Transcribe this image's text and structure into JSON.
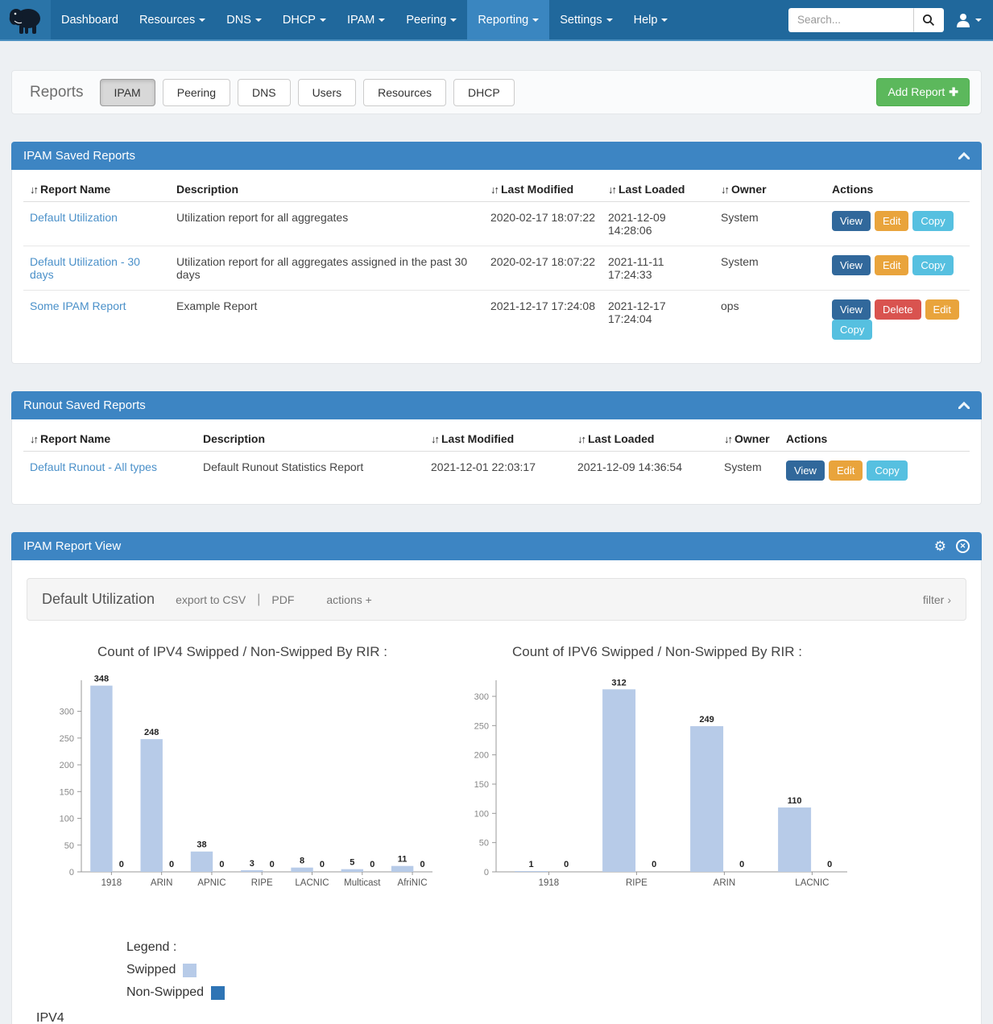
{
  "navbar": {
    "items": [
      {
        "label": "Dashboard",
        "dropdown": false,
        "active": false
      },
      {
        "label": "Resources",
        "dropdown": true,
        "active": false
      },
      {
        "label": "DNS",
        "dropdown": true,
        "active": false
      },
      {
        "label": "DHCP",
        "dropdown": true,
        "active": false
      },
      {
        "label": "IPAM",
        "dropdown": true,
        "active": false
      },
      {
        "label": "Peering",
        "dropdown": true,
        "active": false
      },
      {
        "label": "Reporting",
        "dropdown": true,
        "active": true
      },
      {
        "label": "Settings",
        "dropdown": true,
        "active": false
      },
      {
        "label": "Help",
        "dropdown": true,
        "active": false
      }
    ],
    "search_placeholder": "Search...",
    "icons": [
      "mammoth-logo",
      "search-icon",
      "user-icon"
    ]
  },
  "reports_bar": {
    "title": "Reports",
    "tabs": [
      {
        "label": "IPAM",
        "active": true
      },
      {
        "label": "Peering",
        "active": false
      },
      {
        "label": "DNS",
        "active": false
      },
      {
        "label": "Users",
        "active": false
      },
      {
        "label": "Resources",
        "active": false
      },
      {
        "label": "DHCP",
        "active": false
      }
    ],
    "add_button_label": "Add Report",
    "add_button_icon": "✚"
  },
  "ipam_saved": {
    "title": "IPAM Saved Reports",
    "columns": [
      "Report Name",
      "Description",
      "Last Modified",
      "Last Loaded",
      "Owner",
      "Actions"
    ],
    "sorted_columns": [
      true,
      false,
      true,
      true,
      true,
      false
    ],
    "rows": [
      {
        "name": "Default Utilization",
        "description": "Utilization report for all aggregates",
        "modified": "2020-02-17 18:07:22",
        "loaded": "2021-12-09 14:28:06",
        "owner": "System",
        "actions": [
          "View",
          "Edit",
          "Copy"
        ]
      },
      {
        "name": "Default Utilization - 30 days",
        "description": "Utilization report for all aggregates assigned in the past 30 days",
        "modified": "2020-02-17 18:07:22",
        "loaded": "2021-11-11 17:24:33",
        "owner": "System",
        "actions": [
          "View",
          "Edit",
          "Copy"
        ]
      },
      {
        "name": "Some IPAM Report",
        "description": "Example Report",
        "modified": "2021-12-17 17:24:08",
        "loaded": "2021-12-17 17:24:04",
        "owner": "ops",
        "actions": [
          "View",
          "Delete",
          "Edit",
          "Copy"
        ]
      }
    ]
  },
  "runout_saved": {
    "title": "Runout Saved Reports",
    "columns": [
      "Report Name",
      "Description",
      "Last Modified",
      "Last Loaded",
      "Owner",
      "Actions"
    ],
    "sorted_columns": [
      true,
      false,
      true,
      true,
      true,
      false
    ],
    "rows": [
      {
        "name": "Default Runout - All types",
        "description": "Default Runout Statistics Report",
        "modified": "2021-12-01 22:03:17",
        "loaded": "2021-12-09 14:36:54",
        "owner": "System",
        "actions": [
          "View",
          "Edit",
          "Copy"
        ]
      }
    ]
  },
  "report_view": {
    "title": "IPAM Report View",
    "toolbar": {
      "report_title": "Default Utilization",
      "export_csv_label": "export to CSV",
      "separator": "|",
      "pdf_label": "PDF",
      "actions_label": "actions +",
      "filter_label": "filter",
      "filter_chevron": "›"
    }
  },
  "chart_data": [
    {
      "type": "bar",
      "title": "Count of IPV4 Swipped / Non-Swipped By RIR :",
      "categories": [
        "1918",
        "ARIN",
        "APNIC",
        "RIPE",
        "LACNIC",
        "Multicast",
        "AfriNIC"
      ],
      "series": [
        {
          "name": "Swipped",
          "values": [
            348,
            248,
            38,
            3,
            8,
            5,
            11
          ]
        },
        {
          "name": "Non-Swipped",
          "values": [
            0,
            0,
            0,
            0,
            0,
            0,
            0
          ]
        }
      ],
      "yticks": [
        0,
        50,
        100,
        150,
        200,
        250,
        300
      ],
      "ylim": [
        0,
        352
      ],
      "grid": false,
      "legend_position": "below-separate"
    },
    {
      "type": "bar",
      "title": "Count of IPV6 Swipped / Non-Swipped By RIR :",
      "categories": [
        "1918",
        "RIPE",
        "ARIN",
        "LACNIC"
      ],
      "series": [
        {
          "name": "Swipped",
          "values": [
            1,
            312,
            249,
            110
          ]
        },
        {
          "name": "Non-Swipped",
          "values": [
            0,
            0,
            0,
            0
          ]
        }
      ],
      "yticks": [
        0,
        50,
        100,
        150,
        200,
        250,
        300
      ],
      "ylim": [
        0,
        322
      ],
      "grid": false,
      "legend_position": "below-separate"
    }
  ],
  "legend": {
    "title": "Legend :",
    "items": [
      {
        "label": "Swipped",
        "color": "#b7cbe8"
      },
      {
        "label": "Non-Swipped",
        "color": "#2e74b5"
      }
    ]
  },
  "footer_label": "IPV4",
  "colors": {
    "navbar_bg": "#20689c",
    "navbar_active": "#3a86c0",
    "panel_header": "#3d85c3",
    "link": "#4a90c9",
    "btn_view": "#31689b",
    "btn_edit": "#e9a43c",
    "btn_copy": "#56c0e0",
    "btn_delete": "#d9534f",
    "btn_add": "#5cb85c",
    "bar_swipped": "#b7cbe8",
    "bar_non_swipped": "#2e74b5"
  }
}
